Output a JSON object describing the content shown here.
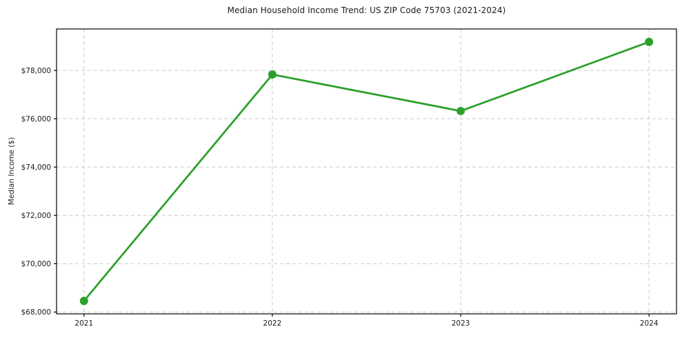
{
  "chart_data": {
    "type": "line",
    "title": "Median Household Income Trend: US ZIP Code 75703 (2021-2024)",
    "xlabel": "",
    "ylabel": "Median Income ($)",
    "x": [
      2021,
      2022,
      2023,
      2024
    ],
    "xtick_labels": [
      "2021",
      "2022",
      "2023",
      "2024"
    ],
    "series": [
      {
        "name": "Median Household Income",
        "values": [
          68460,
          77830,
          76320,
          79180
        ]
      }
    ],
    "yticks": [
      68000,
      70000,
      72000,
      74000,
      76000,
      78000
    ],
    "ytick_labels": [
      "$68,000",
      "$70,000",
      "$72,000",
      "$74,000",
      "$76,000",
      "$78,000"
    ],
    "ylim": [
      67924,
      79716
    ],
    "grid": true,
    "grid_linestyle": "dashed",
    "legend": "none",
    "line_color": "#2ca02c",
    "marker_color": "#2ca02c",
    "grid_color": "#cacaca",
    "spine_color": "#000000",
    "text_color": "#1a1a1a"
  }
}
